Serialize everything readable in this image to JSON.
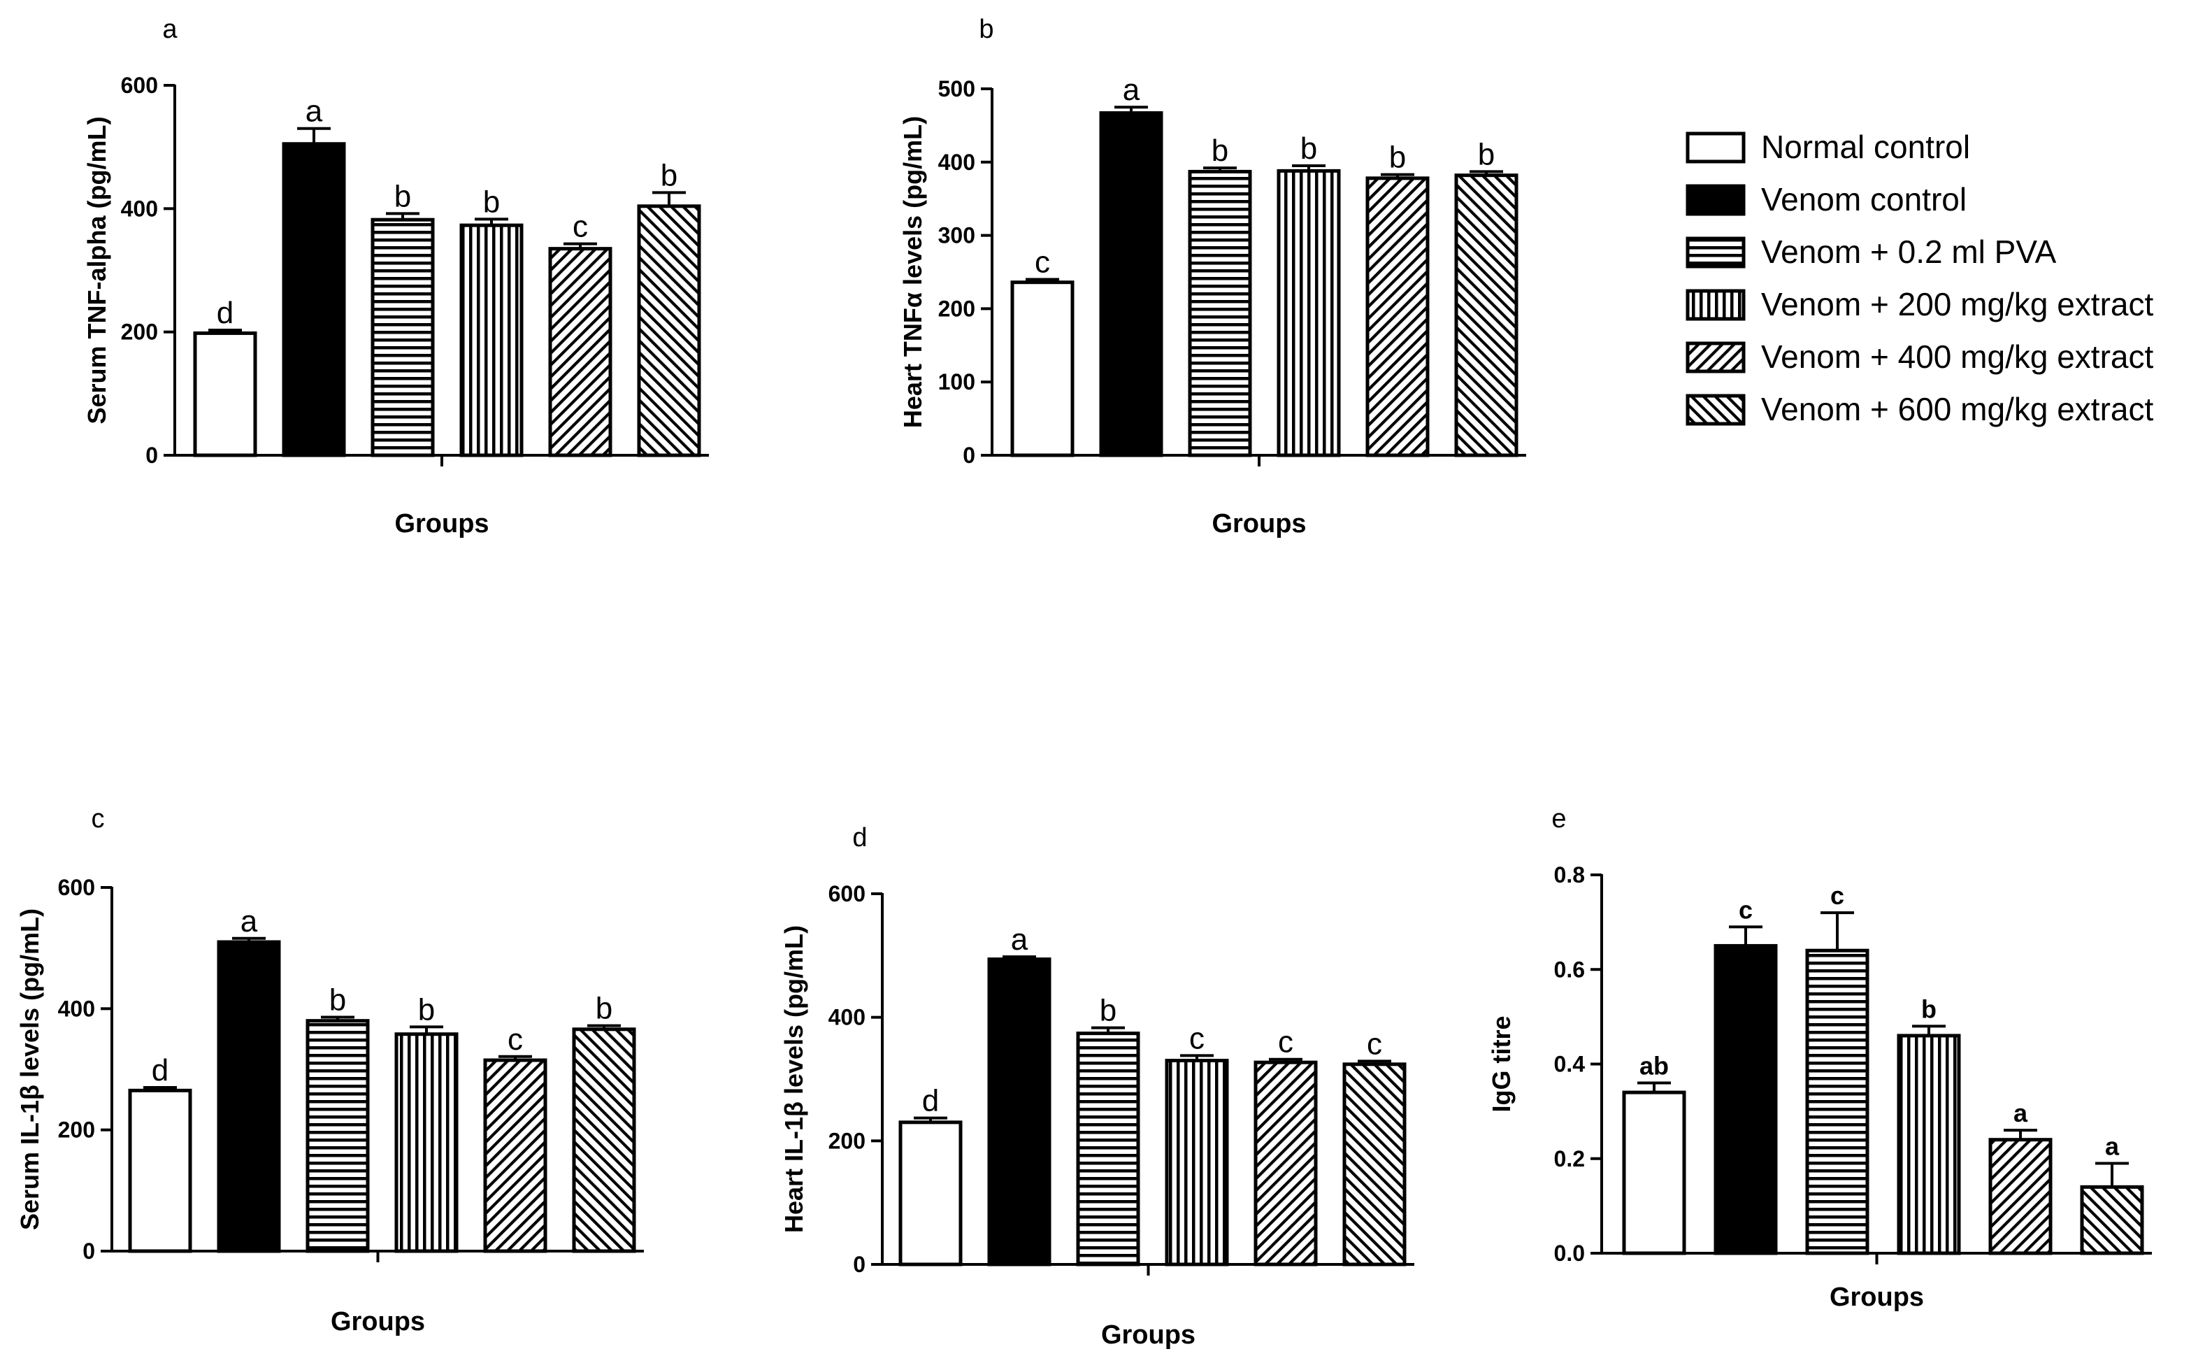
{
  "groups": [
    "Normal control",
    "Venom control",
    "Venom + 0.2 ml PVA",
    "Venom + 200 mg/kg extract",
    "Venom + 400 mg/kg extract",
    "Venom + 600 mg/kg extract"
  ],
  "legend": {
    "position": "top-right",
    "items": [
      {
        "label": "Normal control",
        "pattern": "empty"
      },
      {
        "label": "Venom control",
        "pattern": "solid"
      },
      {
        "label": "Venom + 0.2 ml PVA",
        "pattern": "horizontal"
      },
      {
        "label": "Venom + 200 mg/kg extract",
        "pattern": "vertical"
      },
      {
        "label": "Venom + 400 mg/kg extract",
        "pattern": "diag-fwd"
      },
      {
        "label": "Venom + 600 mg/kg extract",
        "pattern": "diag-back"
      }
    ]
  },
  "chart_data": [
    {
      "panel": "a",
      "type": "bar",
      "ylabel": "Serum TNF-alpha (pg/mL)",
      "xlabel": "Groups",
      "ylim": [
        0,
        600
      ],
      "yticks": [
        "0",
        "200",
        "400",
        "600"
      ],
      "tickvals": [
        0,
        200,
        400,
        600
      ],
      "categories": [
        "Normal control",
        "Venom control",
        "Venom + 0.2 ml PVA",
        "Venom + 200 mg/kg extract",
        "Venom + 400 mg/kg extract",
        "Venom + 600 mg/kg extract"
      ],
      "values": [
        198,
        505,
        382,
        373,
        335,
        404
      ],
      "errors": [
        5,
        25,
        10,
        10,
        8,
        22
      ],
      "letters": [
        "d",
        "a",
        "b",
        "b",
        "c",
        "b"
      ]
    },
    {
      "panel": "b",
      "type": "bar",
      "ylabel": "Heart TNFα levels (pg/mL)",
      "xlabel": "Groups",
      "ylim": [
        0,
        500
      ],
      "yticks": [
        "0",
        "100",
        "200",
        "300",
        "400",
        "500"
      ],
      "tickvals": [
        0,
        100,
        200,
        300,
        400,
        500
      ],
      "categories": [
        "Normal control",
        "Venom control",
        "Venom + 0.2 ml PVA",
        "Venom + 200 mg/kg extract",
        "Venom + 400 mg/kg extract",
        "Venom + 600 mg/kg extract"
      ],
      "values": [
        236,
        467,
        387,
        388,
        378,
        382
      ],
      "errors": [
        4,
        8,
        5,
        7,
        5,
        5
      ],
      "letters": [
        "c",
        "a",
        "b",
        "b",
        "b",
        "b"
      ]
    },
    {
      "panel": "c",
      "type": "bar",
      "ylabel": "Serum IL-1β levels (pg/mL)",
      "xlabel": "Groups",
      "ylim": [
        0,
        600
      ],
      "yticks": [
        "0",
        "200",
        "400",
        "600"
      ],
      "tickvals": [
        0,
        200,
        400,
        600
      ],
      "categories": [
        "Normal control",
        "Venom control",
        "Venom + 0.2 ml PVA",
        "Venom + 200 mg/kg extract",
        "Venom + 400 mg/kg extract",
        "Venom + 600 mg/kg extract"
      ],
      "values": [
        265,
        510,
        380,
        358,
        315,
        366
      ],
      "errors": [
        5,
        6,
        6,
        12,
        6,
        6
      ],
      "letters": [
        "d",
        "a",
        "b",
        "b",
        "c",
        "b"
      ]
    },
    {
      "panel": "d",
      "type": "bar",
      "ylabel": "Heart IL-1β levels (pg/mL)",
      "xlabel": "Groups",
      "ylim": [
        0,
        600
      ],
      "yticks": [
        "0",
        "200",
        "400",
        "600"
      ],
      "tickvals": [
        0,
        200,
        400,
        600
      ],
      "categories": [
        "Normal control",
        "Venom control",
        "Venom + 0.2 ml PVA",
        "Venom + 200 mg/kg extract",
        "Venom + 400 mg/kg extract",
        "Venom + 600 mg/kg extract"
      ],
      "values": [
        230,
        494,
        374,
        330,
        327,
        324
      ],
      "errors": [
        7,
        4,
        9,
        8,
        5,
        5
      ],
      "letters": [
        "d",
        "a",
        "b",
        "c",
        "c",
        "c"
      ]
    },
    {
      "panel": "e",
      "type": "bar",
      "ylabel": "IgG titre",
      "xlabel": "Groups",
      "ylim": [
        0,
        0.8
      ],
      "yticks": [
        "0.0",
        "0.2",
        "0.4",
        "0.6",
        "0.8"
      ],
      "tickvals": [
        0,
        0.2,
        0.4,
        0.6,
        0.8
      ],
      "categories": [
        "Normal control",
        "Venom control",
        "Venom + 0.2 ml PVA",
        "Venom + 200 mg/kg extract",
        "Venom + 400 mg/kg extract",
        "Venom + 600 mg/kg extract"
      ],
      "values": [
        0.34,
        0.65,
        0.64,
        0.46,
        0.24,
        0.14
      ],
      "errors": [
        0.02,
        0.04,
        0.08,
        0.02,
        0.02,
        0.05
      ],
      "letters": [
        "ab",
        "c",
        "c",
        "b",
        "a",
        "a"
      ]
    }
  ]
}
